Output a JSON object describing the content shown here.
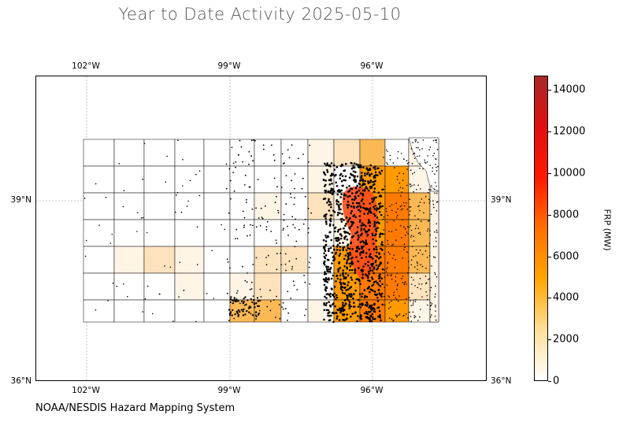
{
  "title": "Year to Date Activity 2025-05-10",
  "credit": "NOAA/NESDIS Hazard Mapping System",
  "map": {
    "longitude_ticks": [
      "102°W",
      "99°W",
      "96°W"
    ],
    "latitude_ticks": [
      "39°N",
      "36°N"
    ],
    "gridlines": true,
    "region": "Kansas counties",
    "fire_detection_marker_color": "#000000",
    "county_fill_colors": {
      "none": "#ffffff",
      "very_low": "#fff5e6",
      "low": "#fde3bd",
      "medium": "#fbb955",
      "high": "#ff9a00",
      "very_high": "#ff7a00",
      "hotspot": "#ff4d1a"
    }
  },
  "colorbar": {
    "label": "FRP (MW)",
    "ticks": [
      "0",
      "2000",
      "4000",
      "6000",
      "8000",
      "10000",
      "12000",
      "14000"
    ],
    "min": 0,
    "max": 14700,
    "colors": [
      "#ffffff",
      "#ffdf99",
      "#ffa500",
      "#ff7000",
      "#ff1a00",
      "#e01010",
      "#a82828"
    ]
  }
}
